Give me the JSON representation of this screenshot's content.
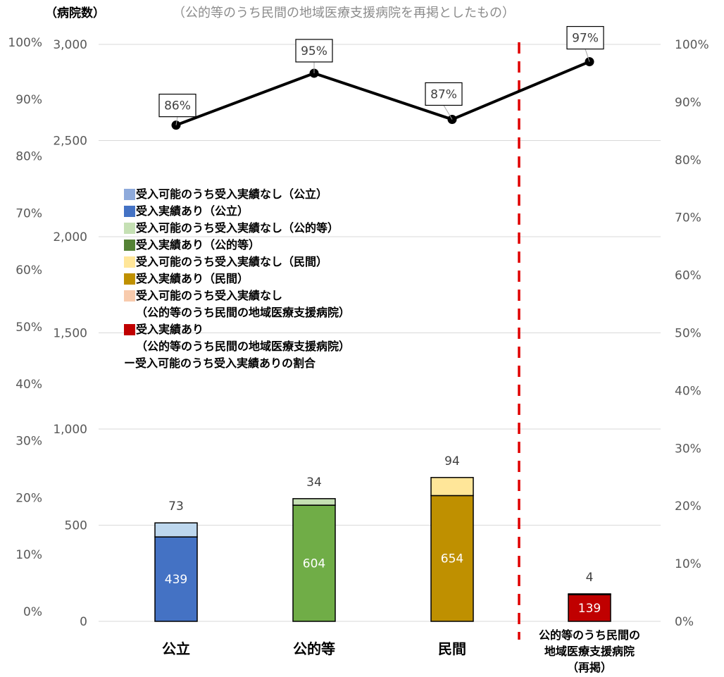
{
  "chart_data": {
    "type": "bar",
    "stacked": true,
    "title": "",
    "subtitle": "（公的等のうち民間の地域医療支援病院を再掲としたもの）",
    "ylabel": "（病院数）",
    "ylim": [
      0,
      3000
    ],
    "yticks": [
      "0",
      "500",
      "1,000",
      "1,500",
      "2,000",
      "2,500",
      "3,000"
    ],
    "y2lim": [
      0,
      100
    ],
    "y2ticks": [
      "0%",
      "10%",
      "20%",
      "30%",
      "40%",
      "50%",
      "60%",
      "70%",
      "80%",
      "90%",
      "100%"
    ],
    "y3ticks": [
      "0%",
      "10%",
      "20%",
      "30%",
      "40%",
      "50%",
      "60%",
      "70%",
      "80%",
      "90%",
      "100%"
    ],
    "grid": true,
    "categories": [
      {
        "lines": [
          "公立"
        ]
      },
      {
        "lines": [
          "公的等"
        ]
      },
      {
        "lines": [
          "民間"
        ]
      },
      {
        "lines": [
          "公的等のうち民間の",
          "地域医療支援病院",
          "（再掲）"
        ]
      }
    ],
    "bars": [
      {
        "with_records": 439,
        "without_records": 73,
        "with_label": "439",
        "without_label": "73",
        "with_color": "#4472c4",
        "without_color": "#bdd7ee"
      },
      {
        "with_records": 604,
        "without_records": 34,
        "with_label": "604",
        "without_label": "34",
        "with_color": "#70ad47",
        "without_color": "#c5e0b4"
      },
      {
        "with_records": 654,
        "without_records": 94,
        "with_label": "654",
        "without_label": "94",
        "with_color": "#bf9000",
        "without_color": "#ffe699"
      },
      {
        "with_records": 139,
        "without_records": 4,
        "with_label": "139",
        "without_label": "4",
        "with_color": "#c00000",
        "without_color": "#f8cbad"
      }
    ],
    "line": {
      "name": "受入可能のうち受入実績ありの割合",
      "values": [
        86,
        95,
        87,
        97
      ],
      "labels": [
        "86%",
        "95%",
        "87%",
        "97%"
      ],
      "color": "#000000"
    },
    "separator_color": "#e00000",
    "legend_position": "left-middle",
    "legend": [
      {
        "lines": [
          "受入可能のうち受入実績なし（公立）"
        ],
        "color": "#8eaadb"
      },
      {
        "lines": [
          "受入実績あり（公立）"
        ],
        "color": "#4472c4"
      },
      {
        "lines": [
          "受入可能のうち受入実績なし（公的等）"
        ],
        "color": "#c5e0b4"
      },
      {
        "lines": [
          "受入実績あり（公的等）"
        ],
        "color": "#548235"
      },
      {
        "lines": [
          "受入可能のうち受入実績なし（民間）"
        ],
        "color": "#ffe699"
      },
      {
        "lines": [
          "受入実績あり（民間）"
        ],
        "color": "#bf9000"
      },
      {
        "lines": [
          "受入可能のうち受入実績なし",
          "（公的等のうち民間の地域医療支援病院）"
        ],
        "color": "#f8cbad"
      },
      {
        "lines": [
          "受入実績あり",
          "（公的等のうち民間の地域医療支援病院）"
        ],
        "color": "#c00000"
      },
      {
        "lines": [
          "ー受入可能のうち受入実績ありの割合"
        ],
        "color": null
      }
    ]
  }
}
